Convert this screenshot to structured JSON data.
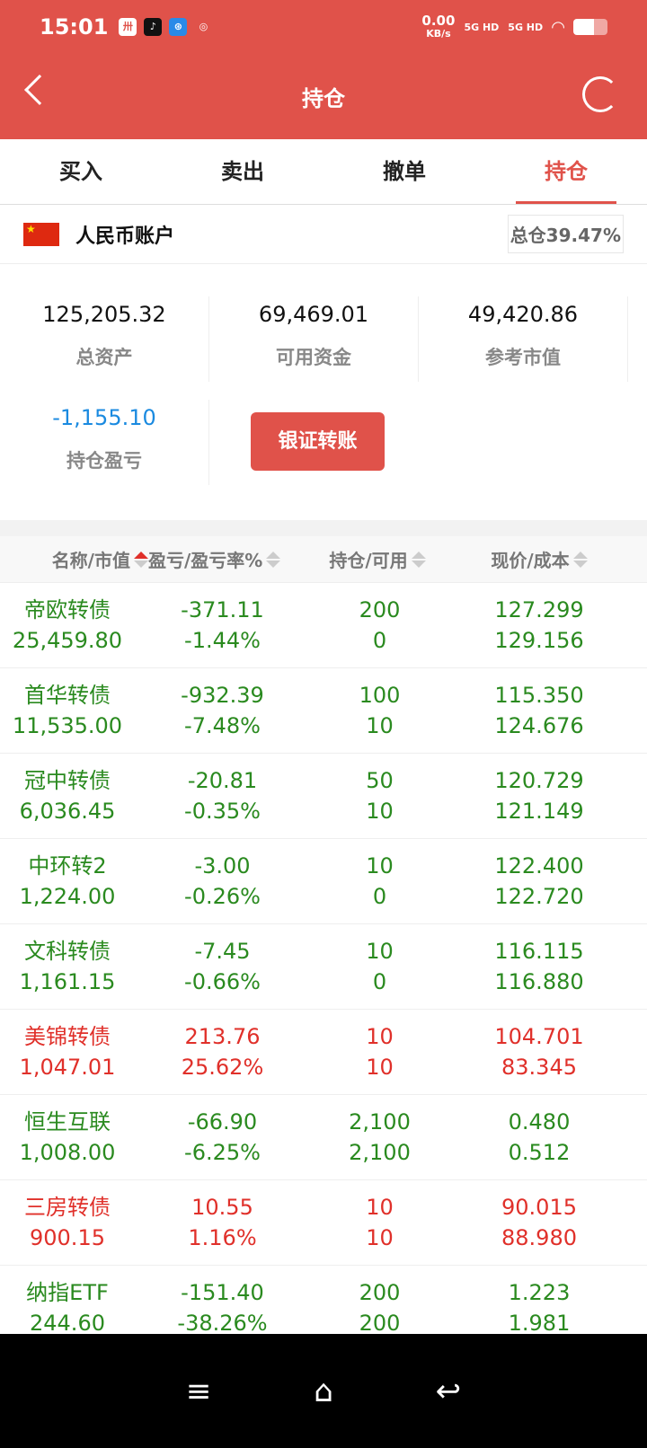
{
  "status": {
    "time": "15:01",
    "net_speed": "0.00",
    "net_unit": "KB/s",
    "sim1": "5G HD",
    "sim2": "5G HD"
  },
  "header": {
    "title": "持仓"
  },
  "tabs": [
    {
      "label": "买入"
    },
    {
      "label": "卖出"
    },
    {
      "label": "撤单"
    },
    {
      "label": "持仓",
      "active": true
    }
  ],
  "account": {
    "name": "人民币账户",
    "position": "总仓39.47%"
  },
  "stats": {
    "total_assets": {
      "value": "125,205.32",
      "label": "总资产"
    },
    "available": {
      "value": "69,469.01",
      "label": "可用资金"
    },
    "market_value": {
      "value": "49,420.86",
      "label": "参考市值"
    },
    "pnl": {
      "value": "-1,155.10",
      "label": "持仓盈亏"
    },
    "transfer_button": "银证转账"
  },
  "columns": [
    "名称/市值",
    "盈亏/盈亏率%",
    "持仓/可用",
    "现价/成本"
  ],
  "colors": {
    "header": "#e0524a",
    "gain": "#e0302a",
    "loss": "#2a8a1f",
    "blue": "#1a8ae0"
  },
  "rows": [
    {
      "name": "帝欧转债",
      "mv": "25,459.80",
      "pnl": "-371.11",
      "rate": "-1.44%",
      "hold": "200",
      "avail": "0",
      "price": "127.299",
      "cost": "129.156",
      "up": false
    },
    {
      "name": "首华转债",
      "mv": "11,535.00",
      "pnl": "-932.39",
      "rate": "-7.48%",
      "hold": "100",
      "avail": "10",
      "price": "115.350",
      "cost": "124.676",
      "up": false
    },
    {
      "name": "冠中转债",
      "mv": "6,036.45",
      "pnl": "-20.81",
      "rate": "-0.35%",
      "hold": "50",
      "avail": "10",
      "price": "120.729",
      "cost": "121.149",
      "up": false
    },
    {
      "name": "中环转2",
      "mv": "1,224.00",
      "pnl": "-3.00",
      "rate": "-0.26%",
      "hold": "10",
      "avail": "0",
      "price": "122.400",
      "cost": "122.720",
      "up": false
    },
    {
      "name": "文科转债",
      "mv": "1,161.15",
      "pnl": "-7.45",
      "rate": "-0.66%",
      "hold": "10",
      "avail": "0",
      "price": "116.115",
      "cost": "116.880",
      "up": false
    },
    {
      "name": "美锦转债",
      "mv": "1,047.01",
      "pnl": "213.76",
      "rate": "25.62%",
      "hold": "10",
      "avail": "10",
      "price": "104.701",
      "cost": "83.345",
      "up": true
    },
    {
      "name": "恒生互联",
      "mv": "1,008.00",
      "pnl": "-66.90",
      "rate": "-6.25%",
      "hold": "2,100",
      "avail": "2,100",
      "price": "0.480",
      "cost": "0.512",
      "up": false
    },
    {
      "name": "三房转债",
      "mv": "900.15",
      "pnl": "10.55",
      "rate": "1.16%",
      "hold": "10",
      "avail": "10",
      "price": "90.015",
      "cost": "88.980",
      "up": true
    },
    {
      "name": "纳指ETF",
      "mv": "244.60",
      "pnl": "-151.40",
      "rate": "-38.26%",
      "hold": "200",
      "avail": "200",
      "price": "1.223",
      "cost": "1.981",
      "up": false
    }
  ]
}
